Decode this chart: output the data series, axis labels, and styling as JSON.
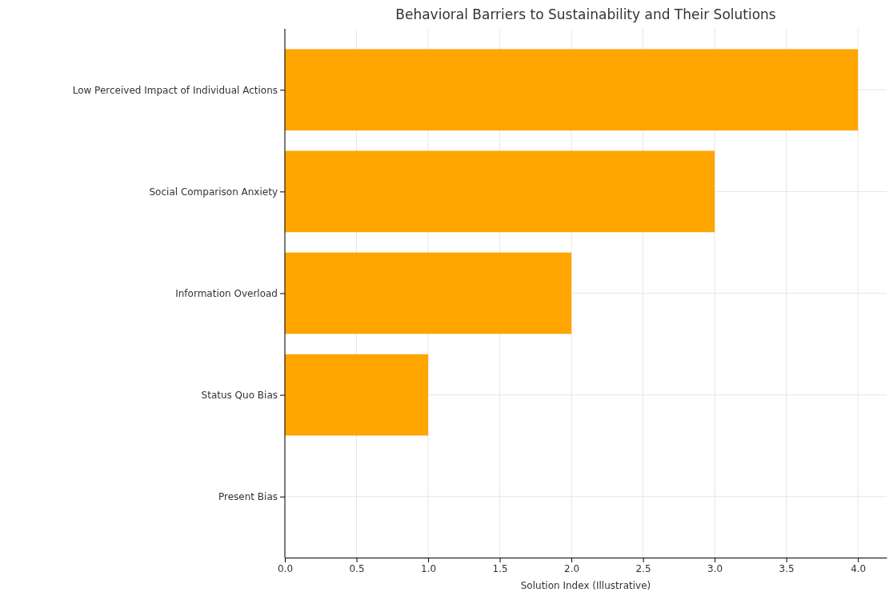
{
  "chart_data": {
    "type": "bar",
    "orientation": "horizontal",
    "title": "Behavioral Barriers to Sustainability and Their Solutions",
    "xlabel": "Solution Index (Illustrative)",
    "categories": [
      "Low Perceived Impact of Individual Actions",
      "Social Comparison Anxiety",
      "Information Overload",
      "Status Quo Bias",
      "Present Bias"
    ],
    "values": [
      4,
      3,
      2,
      1,
      0
    ],
    "color": "#ffa500",
    "xlim": [
      0,
      4.2
    ],
    "xticks": [
      {
        "value": 0,
        "label": "0.0"
      },
      {
        "value": 0.5,
        "label": "0.5"
      },
      {
        "value": 1,
        "label": "1.0"
      },
      {
        "value": 1.5,
        "label": "1.5"
      },
      {
        "value": 2,
        "label": "2.0"
      },
      {
        "value": 2.5,
        "label": "2.5"
      },
      {
        "value": 3,
        "label": "3.0"
      },
      {
        "value": 3.5,
        "label": "3.5"
      },
      {
        "value": 4,
        "label": "4.0"
      }
    ],
    "grid": true
  }
}
